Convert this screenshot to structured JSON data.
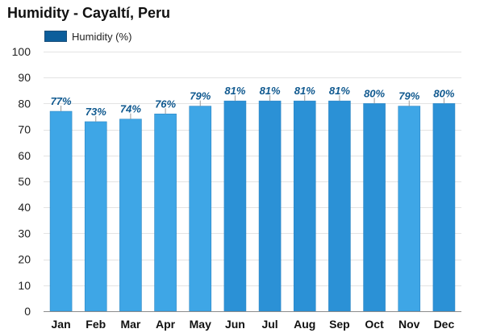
{
  "chart_data": {
    "type": "bar",
    "title": "Humidity - Cayaltí, Peru",
    "legend": [
      {
        "label": "Humidity (%)",
        "color": "#0c5e9b"
      }
    ],
    "categories": [
      "Jan",
      "Feb",
      "Mar",
      "Apr",
      "May",
      "Jun",
      "Jul",
      "Aug",
      "Sep",
      "Oct",
      "Nov",
      "Dec"
    ],
    "values": [
      77,
      73,
      74,
      76,
      79,
      81,
      81,
      81,
      81,
      80,
      79,
      80
    ],
    "value_labels": [
      "77%",
      "73%",
      "74%",
      "76%",
      "79%",
      "81%",
      "81%",
      "81%",
      "81%",
      "80%",
      "79%",
      "80%"
    ],
    "ylim": [
      0,
      100
    ],
    "yticks": [
      0,
      10,
      20,
      30,
      40,
      50,
      60,
      70,
      80,
      90,
      100
    ],
    "xlabel": "",
    "ylabel": "",
    "grid": true,
    "colors": {
      "bar_light": "#3ea6e6",
      "bar_dark": "#2b91d6",
      "bar_edge": "#2f87c4",
      "label": "#10598f",
      "grid": "#e3e3e3"
    }
  }
}
